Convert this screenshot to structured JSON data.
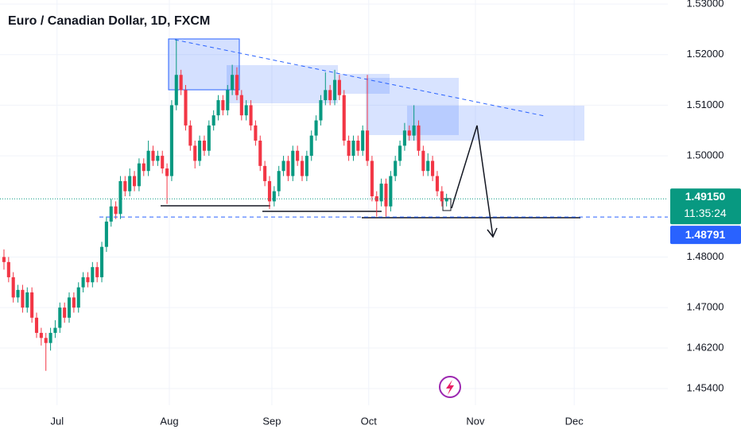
{
  "chart_data": {
    "type": "candlestick",
    "title": "Euro / Canadian Dollar, 1D, FXCM",
    "x": [
      0,
      1,
      2,
      3,
      4,
      5,
      6,
      7,
      8,
      9,
      10,
      11,
      12,
      13,
      14,
      15,
      16,
      17,
      18,
      19,
      20,
      21,
      22,
      23,
      24,
      25,
      26,
      27,
      28,
      29,
      30,
      31,
      32,
      33,
      34,
      35,
      36,
      37,
      38,
      39,
      40,
      41,
      42,
      43,
      44,
      45,
      46,
      47,
      48,
      49,
      50,
      51,
      52,
      53,
      54,
      55,
      56,
      57,
      58,
      59,
      60,
      61,
      62,
      63,
      64,
      65,
      66,
      67,
      68,
      69,
      70,
      71,
      72,
      73,
      74,
      75,
      76,
      77,
      78,
      79,
      80,
      81,
      82,
      83,
      84,
      85,
      86,
      87,
      88,
      89,
      90,
      91,
      92,
      93,
      94,
      95
    ],
    "open": [
      1.48,
      1.479,
      1.476,
      1.472,
      1.4735,
      1.47,
      1.473,
      1.468,
      1.465,
      1.464,
      1.463,
      1.465,
      1.466,
      1.47,
      1.468,
      1.472,
      1.47,
      1.474,
      1.476,
      1.475,
      1.478,
      1.476,
      1.482,
      1.487,
      1.49,
      1.4885,
      1.495,
      1.493,
      1.496,
      1.494,
      1.4985,
      1.497,
      1.501,
      1.499,
      1.5,
      1.4975,
      1.496,
      1.51,
      1.516,
      1.513,
      1.506,
      1.502,
      1.499,
      1.503,
      1.501,
      1.506,
      1.508,
      1.511,
      1.509,
      1.513,
      1.516,
      1.512,
      1.508,
      1.51,
      1.506,
      1.503,
      1.498,
      1.495,
      1.491,
      1.493,
      1.497,
      1.499,
      1.496,
      1.501,
      1.499,
      1.496,
      1.5,
      1.504,
      1.507,
      1.511,
      1.513,
      1.511,
      1.515,
      1.512,
      1.503,
      1.5,
      1.503,
      1.501,
      1.505,
      1.499,
      1.492,
      1.491,
      1.4945,
      1.49,
      1.496,
      1.499,
      1.502,
      1.505,
      1.504,
      1.506,
      1.501,
      1.497,
      1.499,
      1.496,
      1.493,
      1.491
    ],
    "high": [
      1.4815,
      1.48,
      1.477,
      1.4745,
      1.4745,
      1.474,
      1.474,
      1.469,
      1.466,
      1.465,
      1.466,
      1.4675,
      1.471,
      1.471,
      1.473,
      1.473,
      1.475,
      1.477,
      1.477,
      1.479,
      1.479,
      1.483,
      1.488,
      1.4915,
      1.491,
      1.496,
      1.496,
      1.4975,
      1.497,
      1.4995,
      1.4995,
      1.503,
      1.502,
      1.501,
      1.501,
      1.4985,
      1.511,
      1.523,
      1.517,
      1.514,
      1.507,
      1.503,
      1.504,
      1.504,
      1.507,
      1.509,
      1.512,
      1.512,
      1.514,
      1.518,
      1.5175,
      1.513,
      1.511,
      1.511,
      1.507,
      1.504,
      1.499,
      1.496,
      1.494,
      1.498,
      1.5,
      1.5,
      1.502,
      1.502,
      1.5,
      1.501,
      1.505,
      1.508,
      1.512,
      1.5165,
      1.514,
      1.517,
      1.516,
      1.513,
      1.504,
      1.504,
      1.504,
      1.506,
      1.516,
      1.5,
      1.493,
      1.4955,
      1.4955,
      1.497,
      1.5,
      1.503,
      1.5065,
      1.506,
      1.51,
      1.507,
      1.502,
      1.5005,
      1.5,
      1.497,
      1.494,
      1.4925
    ],
    "low": [
      1.4775,
      1.475,
      1.471,
      1.471,
      1.469,
      1.469,
      1.467,
      1.464,
      1.4625,
      1.4575,
      1.4615,
      1.464,
      1.465,
      1.467,
      1.467,
      1.469,
      1.469,
      1.473,
      1.474,
      1.474,
      1.475,
      1.475,
      1.481,
      1.486,
      1.4875,
      1.4875,
      1.492,
      1.492,
      1.493,
      1.493,
      1.496,
      1.496,
      1.498,
      1.498,
      1.4965,
      1.4905,
      1.495,
      1.509,
      1.512,
      1.505,
      1.501,
      1.4975,
      1.498,
      1.5,
      1.5,
      1.505,
      1.507,
      1.508,
      1.508,
      1.512,
      1.511,
      1.507,
      1.507,
      1.505,
      1.502,
      1.497,
      1.494,
      1.4895,
      1.49,
      1.492,
      1.496,
      1.495,
      1.495,
      1.498,
      1.495,
      1.495,
      1.499,
      1.503,
      1.506,
      1.51,
      1.51,
      1.51,
      1.511,
      1.502,
      1.499,
      1.499,
      1.5,
      1.5,
      1.498,
      1.491,
      1.488,
      1.49,
      1.488,
      1.489,
      1.495,
      1.498,
      1.501,
      1.503,
      1.503,
      1.5,
      1.496,
      1.496,
      1.495,
      1.492,
      1.49,
      1.49
    ],
    "close": [
      1.479,
      1.476,
      1.472,
      1.4735,
      1.47,
      1.473,
      1.468,
      1.465,
      1.464,
      1.463,
      1.465,
      1.466,
      1.47,
      1.468,
      1.472,
      1.47,
      1.474,
      1.476,
      1.475,
      1.478,
      1.476,
      1.482,
      1.487,
      1.49,
      1.4885,
      1.495,
      1.493,
      1.496,
      1.494,
      1.4985,
      1.497,
      1.501,
      1.499,
      1.5,
      1.4975,
      1.496,
      1.51,
      1.516,
      1.513,
      1.506,
      1.502,
      1.499,
      1.503,
      1.501,
      1.506,
      1.508,
      1.511,
      1.509,
      1.513,
      1.516,
      1.512,
      1.508,
      1.51,
      1.506,
      1.503,
      1.498,
      1.495,
      1.491,
      1.493,
      1.497,
      1.499,
      1.496,
      1.501,
      1.499,
      1.496,
      1.5,
      1.504,
      1.507,
      1.511,
      1.513,
      1.511,
      1.515,
      1.512,
      1.503,
      1.5,
      1.503,
      1.501,
      1.505,
      1.499,
      1.492,
      1.491,
      1.4945,
      1.49,
      1.496,
      1.499,
      1.502,
      1.505,
      1.504,
      1.506,
      1.501,
      1.497,
      1.499,
      1.496,
      1.493,
      1.491,
      1.4915
    ],
    "up_color": "#089981",
    "down_color": "#f23645",
    "xlim": [
      -0.85,
      142.5
    ],
    "ylim": [
      1.4507,
      1.5308
    ],
    "xticks": [
      {
        "value": 11.4,
        "label": "Jul"
      },
      {
        "value": 35.5,
        "label": "Aug"
      },
      {
        "value": 57.5,
        "label": "Sep"
      },
      {
        "value": 78.3,
        "label": "Oct"
      },
      {
        "value": 101.2,
        "label": "Nov"
      },
      {
        "value": 122.4,
        "label": "Dec"
      }
    ],
    "yticks": [
      {
        "value": 1.53,
        "label": "1.53000"
      },
      {
        "value": 1.52,
        "label": "1.52000"
      },
      {
        "value": 1.51,
        "label": "1.51000"
      },
      {
        "value": 1.5,
        "label": "1.50000"
      },
      {
        "value": 1.48,
        "label": "1.48000"
      },
      {
        "value": 1.47,
        "label": "1.47000"
      },
      {
        "value": 1.462,
        "label": "1.46200"
      },
      {
        "value": 1.454,
        "label": "1.45400"
      }
    ],
    "grid": true,
    "last_price": {
      "value": 1.4915,
      "label": "1.49150",
      "color": "#089981"
    },
    "countdown": "11:35:24",
    "alert_price": {
      "value": 1.48791,
      "label": "1.48791",
      "color": "#2962ff"
    }
  }
}
